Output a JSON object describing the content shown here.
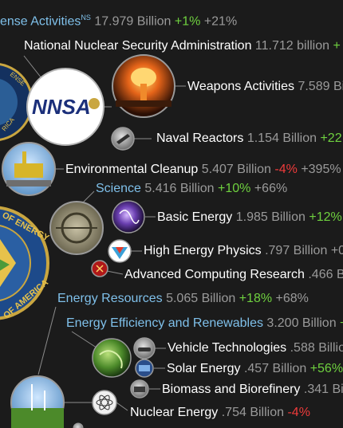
{
  "nodes": {
    "defense": {
      "name": "ense Activities",
      "sup": "NS",
      "value": "17.979 Billion",
      "change": "+1%",
      "growth": "+21%"
    },
    "nnsa": {
      "name": "National Nuclear Security Administration",
      "value": "11.712 billion",
      "change": "+"
    },
    "nnsa_logo": {
      "text": "NNSA"
    },
    "weapons": {
      "name": "Weapons Activities",
      "value": "7.589 Bi"
    },
    "naval": {
      "name": "Naval Reactors",
      "value": "1.154 Billion",
      "change": "+22"
    },
    "envclean": {
      "name": "Environmental Cleanup",
      "value": "5.407 Billion",
      "change": "-4%",
      "growth": "+395%"
    },
    "science": {
      "name": "Science",
      "value": "5.416 Billion",
      "change": "+10%",
      "growth": "+66%"
    },
    "basic": {
      "name": "Basic Energy",
      "value": "1.985 Billion",
      "change": "+12%"
    },
    "hep": {
      "name": "High Energy Physics",
      "value": ".797 Billion",
      "growth": "+0"
    },
    "acr": {
      "name": "Advanced Computing Research",
      "value": ".466 Bill"
    },
    "energy_res": {
      "name": "Energy Resources",
      "value": "5.065 Billion",
      "change": "+18%",
      "growth": "+68%"
    },
    "eere": {
      "name": "Energy Efficiency and Renewables",
      "value": "3.200 Billion",
      "change": "+"
    },
    "vehicle": {
      "name": "Vehicle Technologies",
      "value": ".588 Billio"
    },
    "solar": {
      "name": "Solar Energy",
      "value": ".457 Billion",
      "change": "+56%"
    },
    "biomass": {
      "name": "Biomass and Biorefinery",
      "value": ".341 Bil"
    },
    "nuclear": {
      "name": "Nuclear Energy",
      "value": ".754 Billion",
      "change": "-4%"
    }
  },
  "seal_text": {
    "top": "OF ENERGY",
    "bottom": "OF AMERICA",
    "small": "ENSE",
    "small2": "RICA"
  },
  "colors": {
    "background": "#1b1b1b",
    "blue_label": "#7fc0ea",
    "increase": "#6fd13f",
    "decrease": "#ef3b3b",
    "value": "#9a9a9a"
  }
}
